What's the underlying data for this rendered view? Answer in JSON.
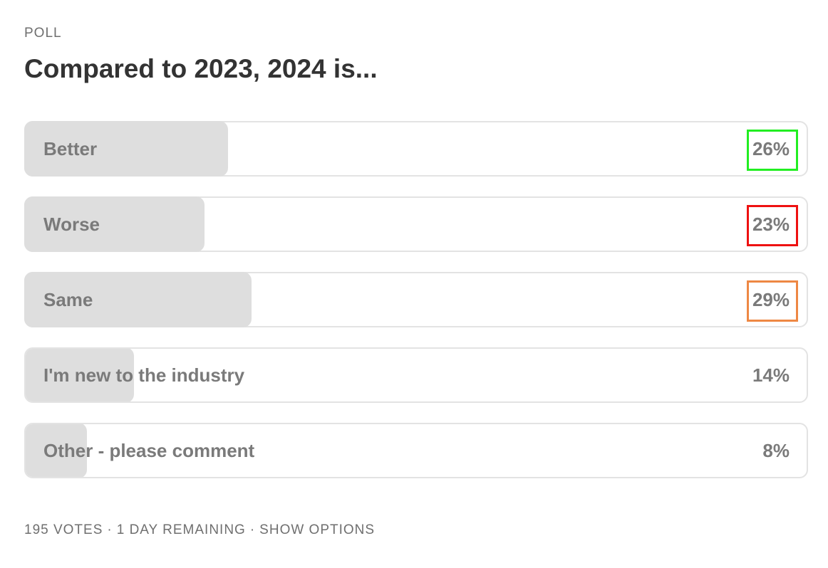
{
  "poll": {
    "label": "POLL",
    "title": "Compared to 2023, 2024 is...",
    "fill_color": "#dedede",
    "options": [
      {
        "label": "Better",
        "percent_text": "26%",
        "percent": 26,
        "highlight_color": "#22ee22"
      },
      {
        "label": "Worse",
        "percent_text": "23%",
        "percent": 23,
        "highlight_color": "#ee1111"
      },
      {
        "label": "Same",
        "percent_text": "29%",
        "percent": 29,
        "highlight_color": "#ee8844"
      },
      {
        "label": "I'm new to the industry",
        "percent_text": "14%",
        "percent": 14
      },
      {
        "label": "Other - please comment",
        "percent_text": "8%",
        "percent": 8
      }
    ],
    "footer": {
      "votes": "195 VOTES",
      "separator": "·",
      "remaining": "1 DAY REMAINING",
      "show_options": "SHOW OPTIONS"
    }
  }
}
